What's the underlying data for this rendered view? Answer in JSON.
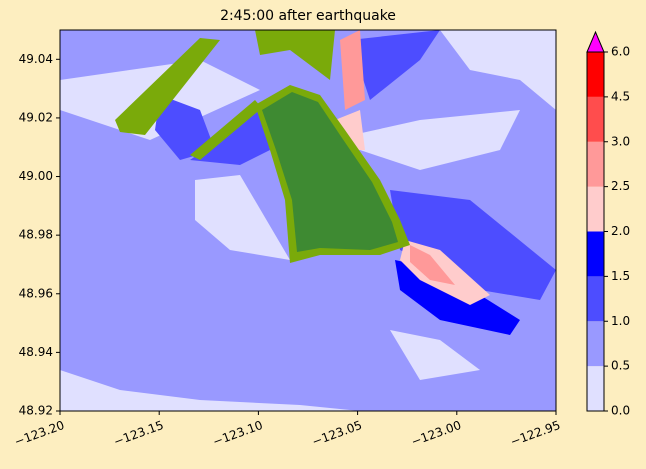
{
  "chart_data": {
    "type": "map",
    "title": "2:45:00 after earthquake",
    "xlim": [
      -123.2,
      -122.95
    ],
    "xticks": [
      {
        "value": -123.2,
        "label": "−123.20"
      },
      {
        "value": -123.15,
        "label": "−123.15"
      },
      {
        "value": -123.1,
        "label": "−123.10"
      },
      {
        "value": -123.05,
        "label": "−123.05"
      },
      {
        "value": -123.0,
        "label": "−123.00"
      },
      {
        "value": -122.95,
        "label": "−122.95"
      }
    ],
    "ylim": [
      48.92,
      49.05
    ],
    "yticks": [
      48.92,
      48.94,
      48.96,
      48.98,
      {
        "value": 49.0,
        "label": "49.00"
      },
      49.02,
      49.04
    ],
    "colorbar": {
      "levels": [
        {
          "value": 0,
          "label": "0.0"
        },
        0.5,
        {
          "value": 1,
          "label": "1.0"
        },
        1.5,
        {
          "value": 2,
          "label": "2.0"
        },
        2.5,
        {
          "value": 3,
          "label": "3.0"
        },
        4.5,
        {
          "value": 6,
          "label": "6.0"
        }
      ],
      "colors": [
        "#e0e0ff",
        "#9999ff",
        "#4d4dff",
        "#0000ff",
        "#ffcccc",
        "#ff9999",
        "#ff4d4d",
        "#ff0000"
      ],
      "over_color": "#ff00ff"
    }
  }
}
